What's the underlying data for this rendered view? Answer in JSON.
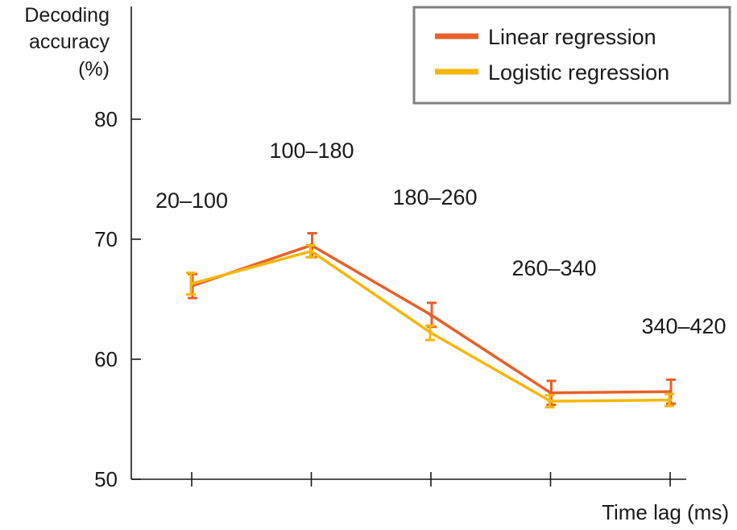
{
  "chart_data": {
    "type": "line",
    "ylabel_lines": [
      "Decoding",
      "accuracy",
      "(%)"
    ],
    "xlabel": "Time lag (ms)",
    "categories": [
      "20–100",
      "100–180",
      "180–260",
      "260–340",
      "340–420"
    ],
    "yticks": [
      50,
      60,
      70,
      80
    ],
    "ylim": [
      50,
      80
    ],
    "legend": {
      "position": "top-right"
    },
    "series": [
      {
        "name": "Linear regression",
        "color": "#e8602a",
        "values": [
          66.1,
          69.5,
          63.7,
          57.2,
          57.3
        ],
        "error": [
          1.0,
          1.0,
          1.0,
          1.0,
          1.0
        ]
      },
      {
        "name": "Logistic regression",
        "color": "#f5b70c",
        "values": [
          66.3,
          69.0,
          62.2,
          56.5,
          56.6
        ],
        "error": [
          0.9,
          0.5,
          0.6,
          0.5,
          0.5
        ]
      }
    ]
  }
}
